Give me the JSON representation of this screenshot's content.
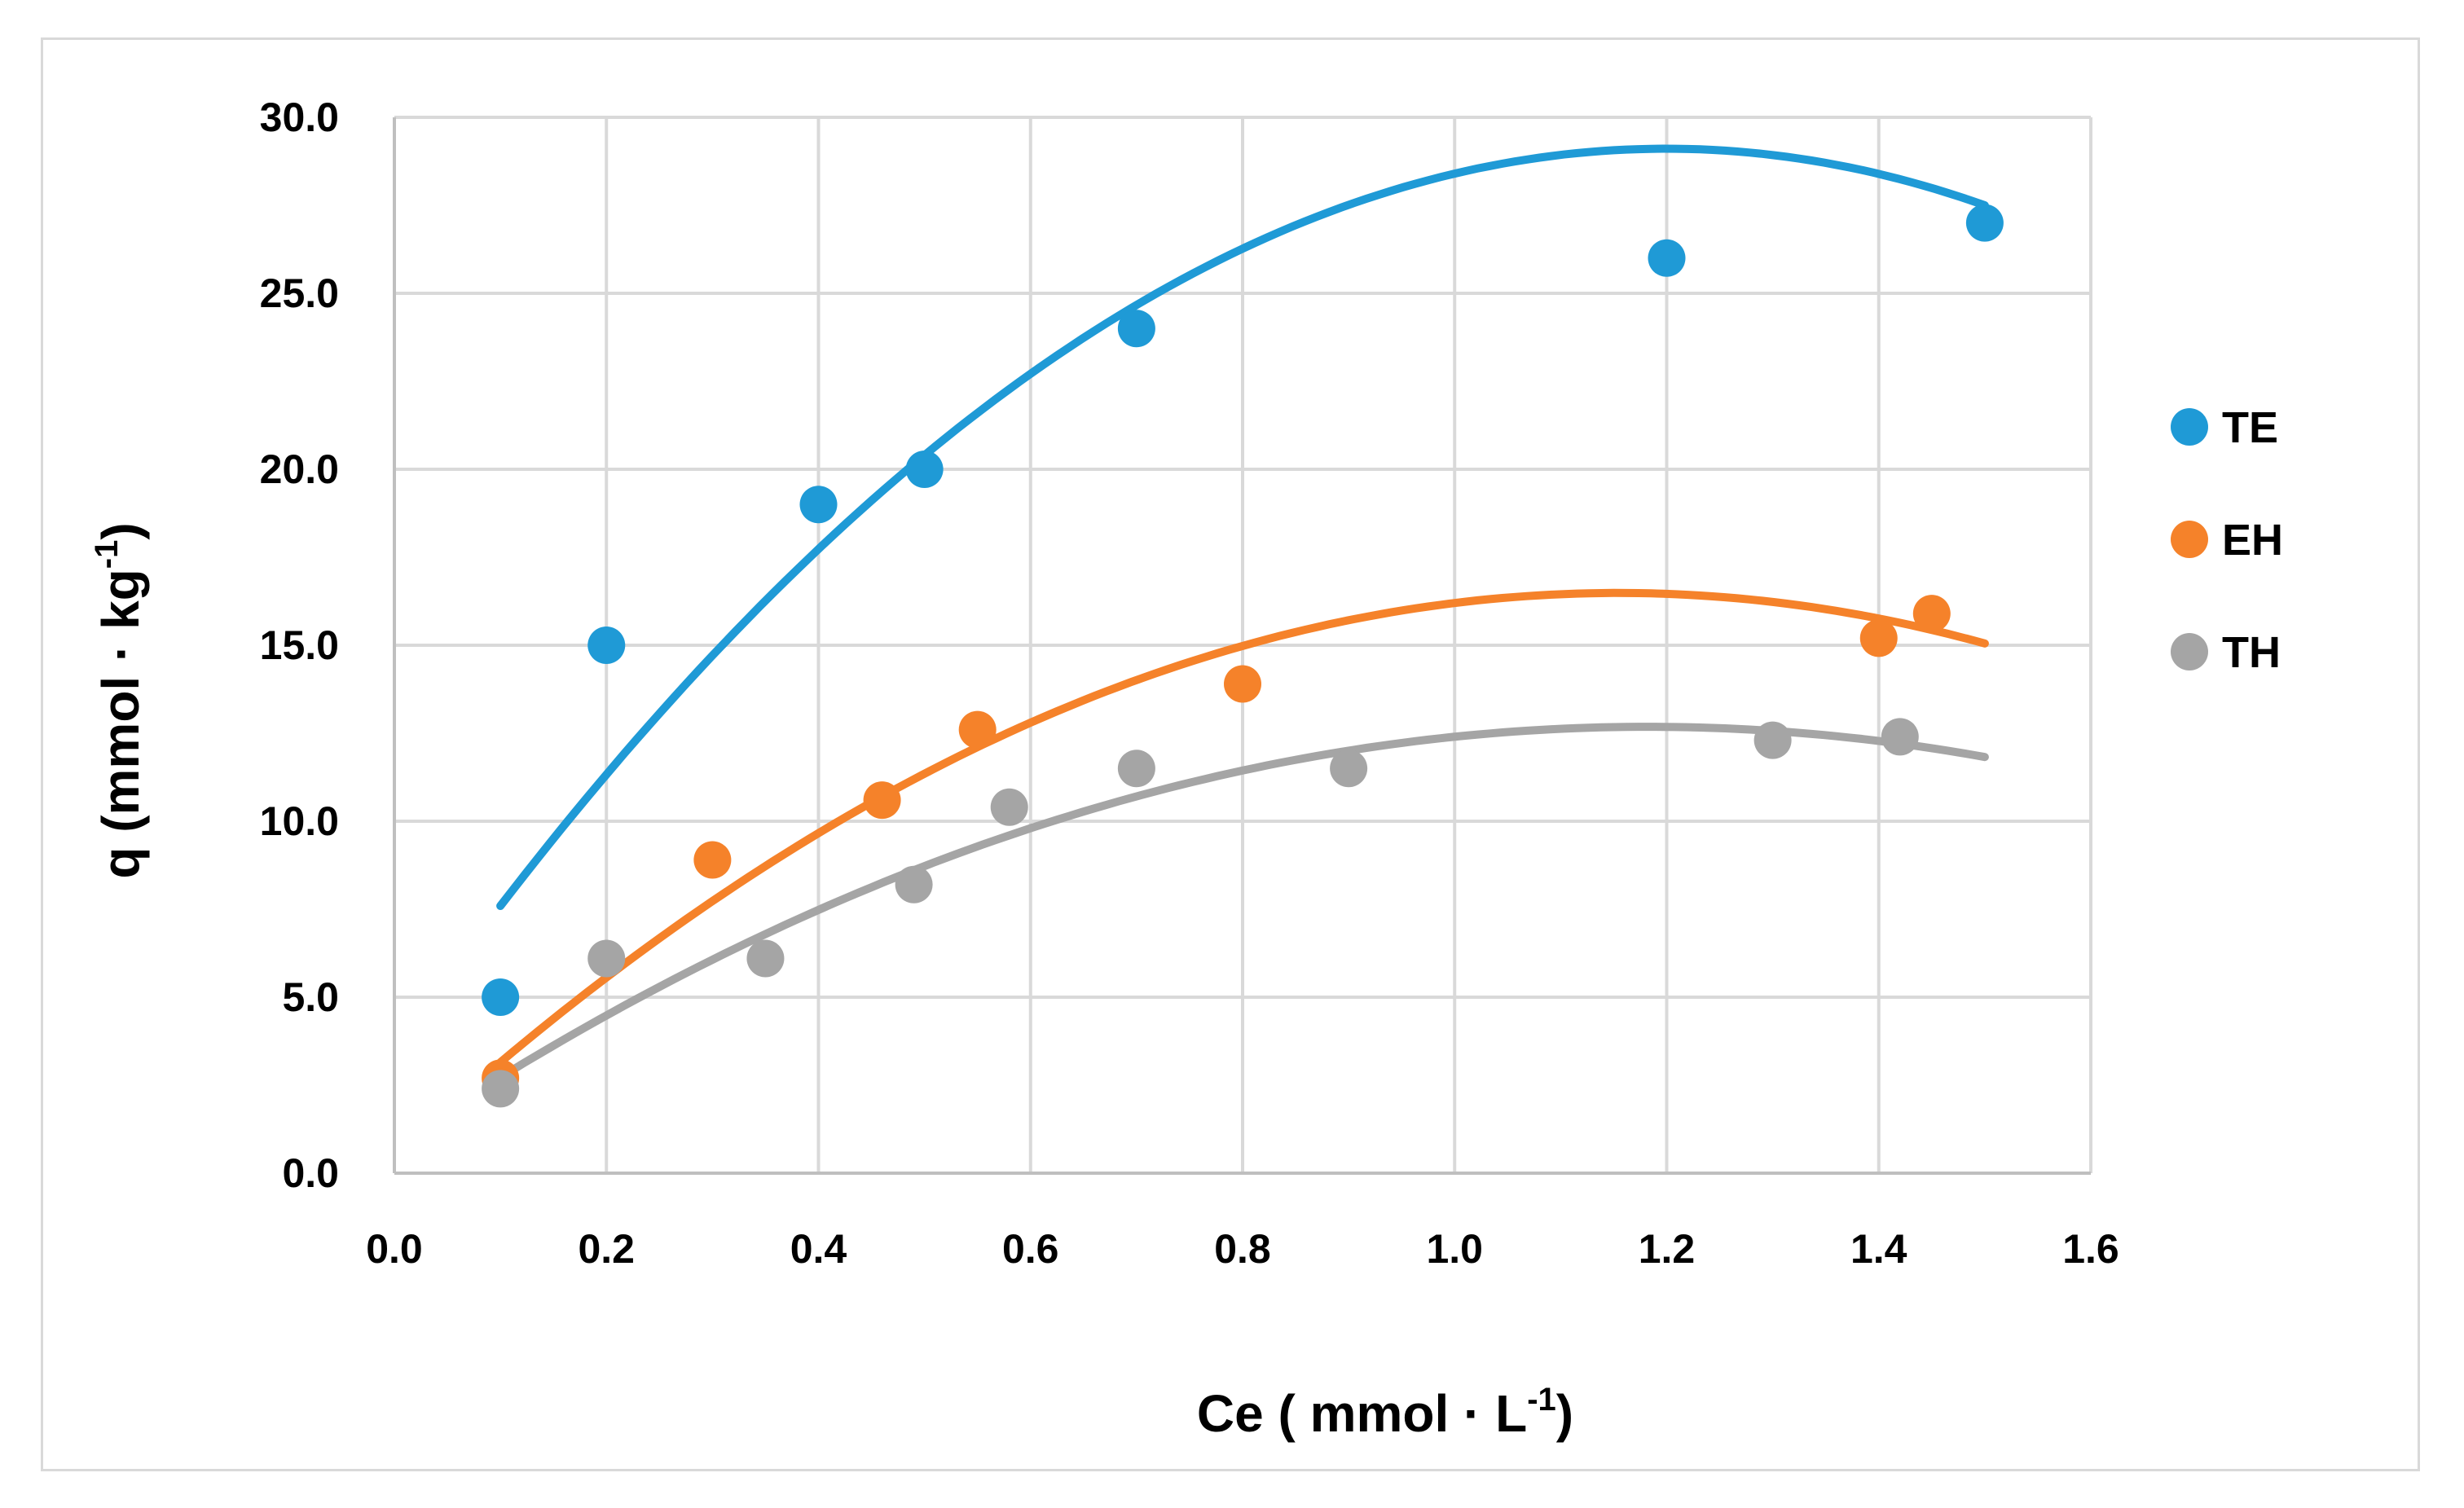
{
  "chart_data": {
    "type": "scatter",
    "title": "",
    "xlabel": {
      "main": "Ce ( mmol · L",
      "sup": "-1",
      "close": ")"
    },
    "ylabel": {
      "main": "q (mmol · kg",
      "sup": "-1",
      "close": ")"
    },
    "xlim": [
      0.0,
      1.6
    ],
    "ylim": [
      0.0,
      30.0
    ],
    "xticks": [
      0.0,
      0.2,
      0.4,
      0.6,
      0.8,
      1.0,
      1.2,
      1.4,
      1.6
    ],
    "yticks": [
      0.0,
      5.0,
      10.0,
      15.0,
      20.0,
      25.0,
      30.0
    ],
    "xtick_labels": [
      "0.0",
      "0.2",
      "0.4",
      "0.6",
      "0.8",
      "1.0",
      "1.2",
      "1.4",
      "1.6"
    ],
    "ytick_labels": [
      "0.0",
      "5.0",
      "10.0",
      "15.0",
      "20.0",
      "25.0",
      "30.0"
    ],
    "grid": true,
    "legend_position": "right",
    "series": [
      {
        "name": "TE",
        "color": "#1f9ad6",
        "points": [
          [
            0.1,
            5.0
          ],
          [
            0.2,
            15.0
          ],
          [
            0.4,
            19.0
          ],
          [
            0.5,
            20.0
          ],
          [
            0.7,
            24.0
          ],
          [
            1.2,
            26.0
          ],
          [
            1.5,
            27.0
          ]
        ],
        "trendline": {
          "type": "polynomial-2",
          "coef": [
            3.5,
            42.7,
            -17.8
          ],
          "range": [
            0.1,
            1.5
          ]
        }
      },
      {
        "name": "EH",
        "color": "#f5822a",
        "points": [
          [
            0.1,
            2.7
          ],
          [
            0.3,
            8.9
          ],
          [
            0.46,
            10.6
          ],
          [
            0.55,
            12.6
          ],
          [
            0.8,
            13.9
          ],
          [
            1.4,
            15.2
          ],
          [
            1.45,
            15.9
          ]
        ],
        "trendline": {
          "type": "polynomial-2",
          "coef": [
            0.5,
            27.7,
            -12.0
          ],
          "range": [
            0.1,
            1.5
          ]
        }
      },
      {
        "name": "TH",
        "color": "#a5a5a5",
        "points": [
          [
            0.1,
            2.4
          ],
          [
            0.2,
            6.1
          ],
          [
            0.35,
            6.1
          ],
          [
            0.49,
            8.2
          ],
          [
            0.58,
            10.4
          ],
          [
            0.7,
            11.5
          ],
          [
            0.9,
            11.5
          ],
          [
            1.3,
            12.3
          ],
          [
            1.42,
            12.4
          ]
        ],
        "trendline": {
          "type": "polynomial-2",
          "coef": [
            0.8,
            20.1,
            -8.5
          ],
          "range": [
            0.1,
            1.5
          ]
        }
      }
    ]
  }
}
